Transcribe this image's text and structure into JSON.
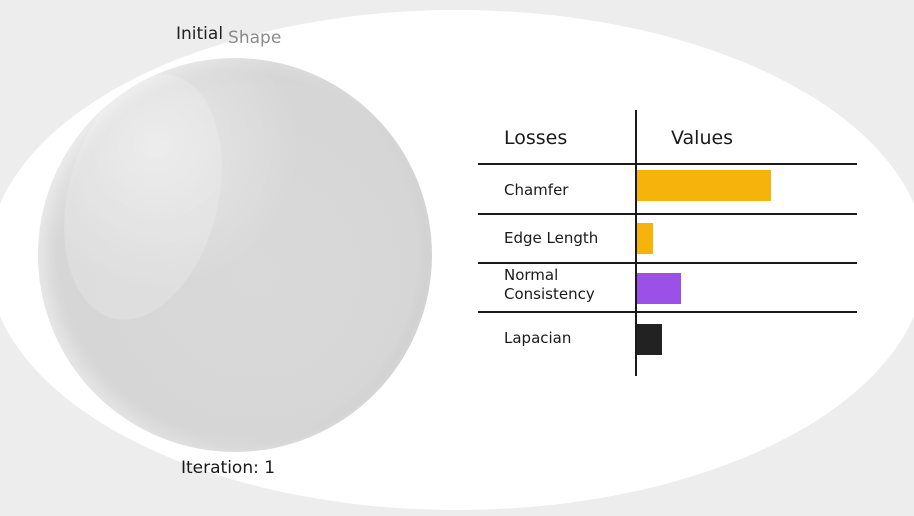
{
  "shape_title": {
    "word1": "Initial",
    "word2": "Shape"
  },
  "iteration_label": "Iteration: 1",
  "table": {
    "header_losses": "Losses",
    "header_values": "Values",
    "rows": [
      {
        "label": "Chamfer",
        "value": 1.0,
        "color": "#f5b30b"
      },
      {
        "label": "Edge Length",
        "value": 0.12,
        "color": "#f5b30b"
      },
      {
        "label_lines": [
          "Normal",
          "Consistency"
        ],
        "value": 0.33,
        "color": "#9b51e8"
      },
      {
        "label": "Lapacian",
        "value": 0.19,
        "color": "#222222"
      }
    ]
  }
}
